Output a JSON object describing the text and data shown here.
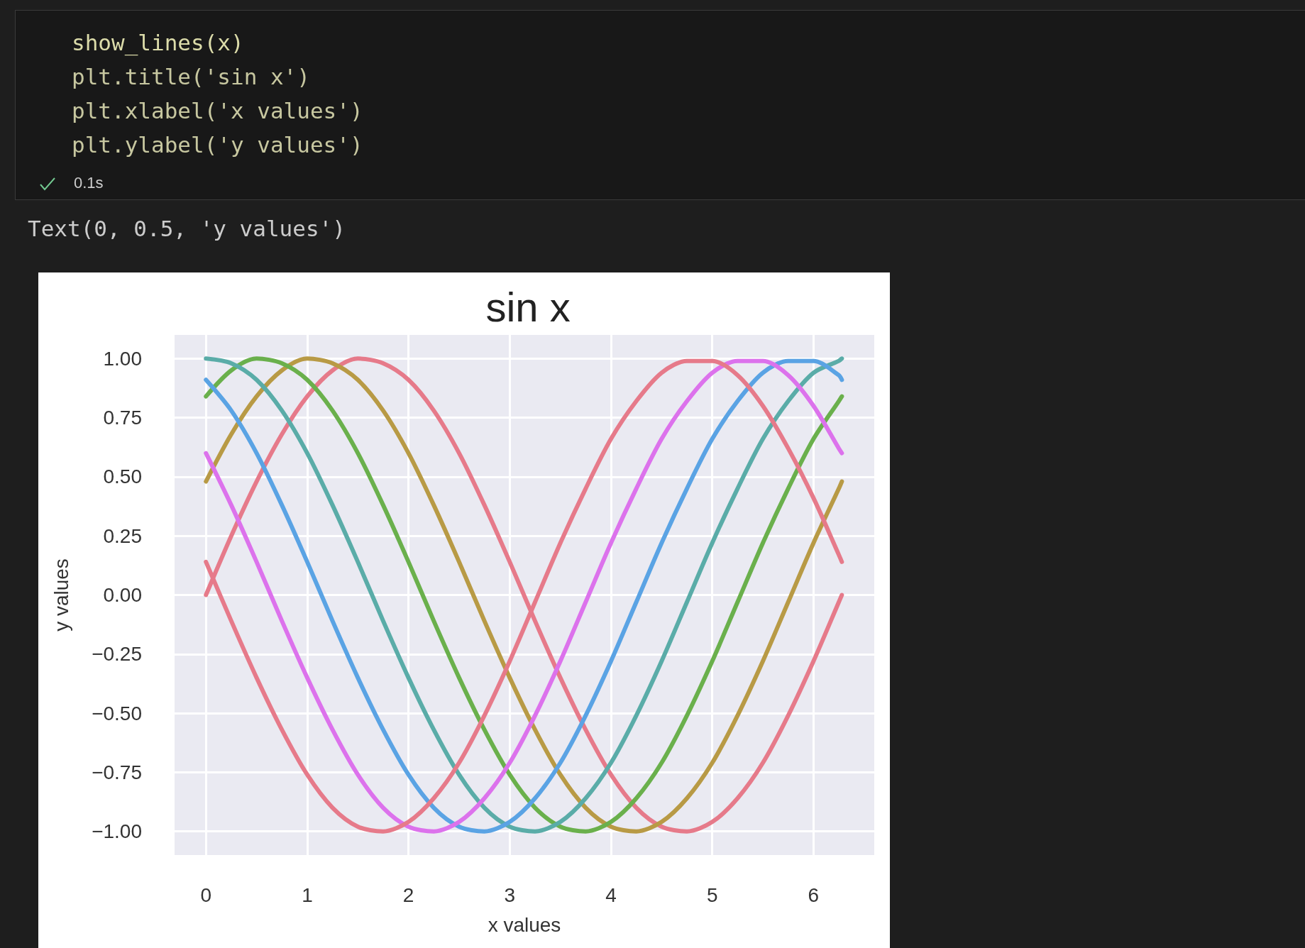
{
  "chart_data": {
    "type": "line",
    "title": "sin x",
    "xlabel": "x values",
    "ylabel": "y values",
    "annotations": [
      "show_lines(x)",
      "plt.title('sin x')",
      "plt.xlabel('x values')",
      "plt.ylabel('y values')",
      "0.1s",
      "Text(0, 0.5, 'y values')"
    ],
    "x": [
      0,
      0.25,
      0.5,
      0.75,
      1,
      1.25,
      1.5,
      1.75,
      2,
      2.25,
      2.5,
      2.75,
      3,
      3.25,
      3.5,
      3.75,
      4,
      4.25,
      4.5,
      4.75,
      5,
      5.25,
      5.5,
      5.75,
      6,
      6.25,
      6.28
    ],
    "series": [
      {
        "color": "#e67a8a",
        "values": [
          0,
          0.25,
          0.48,
          0.68,
          0.84,
          0.95,
          1,
          0.98,
          0.91,
          0.78,
          0.6,
          0.38,
          0.14,
          -0.11,
          -0.35,
          -0.57,
          -0.76,
          -0.9,
          -0.98,
          -1,
          -0.96,
          -0.86,
          -0.71,
          -0.51,
          -0.28,
          -0.03,
          0
        ]
      },
      {
        "color": "#b89a45",
        "values": [
          0.48,
          0.68,
          0.84,
          0.95,
          1,
          0.98,
          0.91,
          0.78,
          0.6,
          0.38,
          0.14,
          -0.11,
          -0.35,
          -0.57,
          -0.76,
          -0.9,
          -0.98,
          -1,
          -0.96,
          -0.86,
          -0.71,
          -0.51,
          -0.28,
          -0.03,
          0.22,
          0.45,
          0.48
        ]
      },
      {
        "color": "#6ab04c",
        "values": [
          0.84,
          0.95,
          1,
          0.98,
          0.91,
          0.78,
          0.6,
          0.38,
          0.14,
          -0.11,
          -0.35,
          -0.57,
          -0.76,
          -0.9,
          -0.98,
          -1,
          -0.96,
          -0.86,
          -0.71,
          -0.51,
          -0.28,
          -0.03,
          0.22,
          0.45,
          0.66,
          0.82,
          0.84
        ]
      },
      {
        "color": "#5aaca8",
        "values": [
          1,
          0.98,
          0.91,
          0.78,
          0.6,
          0.38,
          0.14,
          -0.11,
          -0.35,
          -0.57,
          -0.76,
          -0.9,
          -0.98,
          -1,
          -0.96,
          -0.86,
          -0.71,
          -0.51,
          -0.28,
          -0.03,
          0.22,
          0.45,
          0.66,
          0.82,
          0.94,
          0.99,
          1
        ]
      },
      {
        "color": "#5aa3e4",
        "values": [
          0.91,
          0.78,
          0.6,
          0.38,
          0.14,
          -0.11,
          -0.35,
          -0.57,
          -0.76,
          -0.9,
          -0.98,
          -1,
          -0.96,
          -0.86,
          -0.71,
          -0.51,
          -0.28,
          -0.03,
          0.22,
          0.45,
          0.66,
          0.82,
          0.94,
          0.99,
          0.99,
          0.93,
          0.91
        ]
      },
      {
        "color": "#dc72ec",
        "values": [
          0.6,
          0.38,
          0.14,
          -0.11,
          -0.35,
          -0.57,
          -0.76,
          -0.9,
          -0.98,
          -1,
          -0.96,
          -0.86,
          -0.71,
          -0.51,
          -0.28,
          -0.03,
          0.22,
          0.45,
          0.66,
          0.82,
          0.94,
          0.99,
          0.99,
          0.93,
          0.8,
          0.62,
          0.6
        ]
      },
      {
        "color": "#e67a8a",
        "values": [
          0.14,
          -0.11,
          -0.35,
          -0.57,
          -0.76,
          -0.9,
          -0.98,
          -1,
          -0.96,
          -0.86,
          -0.71,
          -0.51,
          -0.28,
          -0.03,
          0.22,
          0.45,
          0.66,
          0.82,
          0.94,
          0.99,
          0.99,
          0.93,
          0.8,
          0.62,
          0.41,
          0.17,
          0.14
        ]
      }
    ],
    "xlim": [
      -0.31,
      6.6
    ],
    "ylim": [
      -1.1,
      1.1
    ],
    "xticks": [
      0,
      1,
      2,
      3,
      4,
      5,
      6
    ],
    "yticks": [
      {
        "value": -1,
        "label": "−1.00"
      },
      {
        "value": -0.75,
        "label": "−0.75"
      },
      {
        "value": -0.5,
        "label": "−0.50"
      },
      {
        "value": -0.25,
        "label": "−0.25"
      },
      {
        "value": 0,
        "label": "0.00"
      },
      {
        "value": 0.25,
        "label": "0.25"
      },
      {
        "value": 0.5,
        "label": "0.50"
      },
      {
        "value": 0.75,
        "label": "0.75"
      },
      {
        "value": 1,
        "label": "1.00"
      }
    ],
    "grid": true,
    "marker": "none",
    "line_style": "solid"
  }
}
